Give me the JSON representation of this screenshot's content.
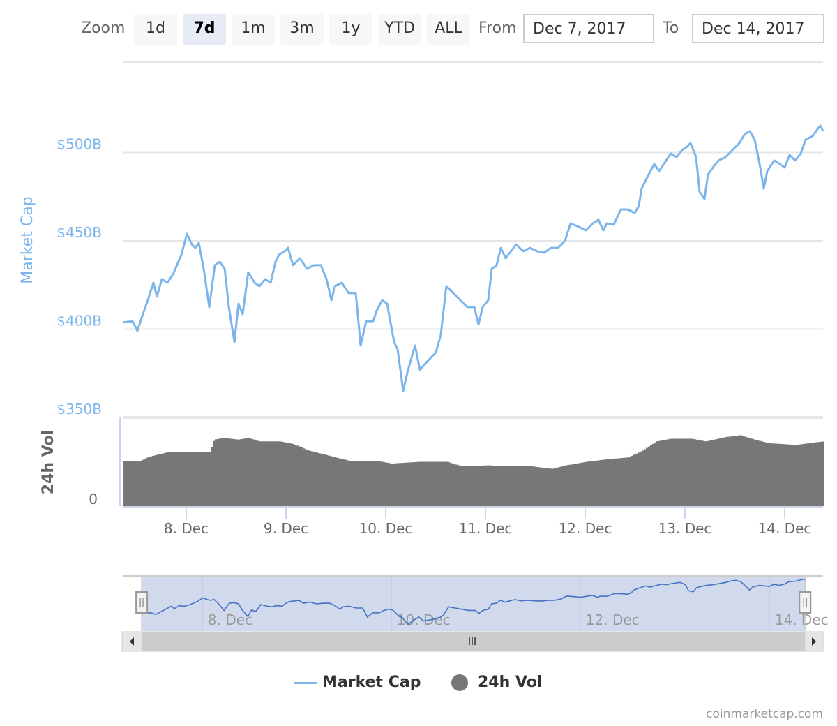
{
  "range_selector": {
    "zoom_label": "Zoom",
    "buttons": [
      "1d",
      "7d",
      "1m",
      "3m",
      "1y",
      "YTD",
      "ALL"
    ],
    "selected": "7d",
    "from_label": "From",
    "from_value": "Dec 7, 2017",
    "to_label": "To",
    "to_value": "Dec 14, 2017"
  },
  "legend": {
    "market_cap": "Market Cap",
    "vol": "24h Vol"
  },
  "credits": "coinmarketcap.com",
  "colors": {
    "market_cap": "#7cb5ec",
    "vol": "#777777",
    "navigator_line": "#4572c4",
    "navigator_fill": "#ccd6eb"
  },
  "chart_data": {
    "type": "line",
    "title": "",
    "x_unit": "days since Dec 7 2017 00:00",
    "xlim": [
      0.36,
      7.38
    ],
    "x_ticks": [
      {
        "t": 1,
        "label": "8. Dec"
      },
      {
        "t": 2,
        "label": "9. Dec"
      },
      {
        "t": 3,
        "label": "10. Dec"
      },
      {
        "t": 4,
        "label": "11. Dec"
      },
      {
        "t": 5,
        "label": "12. Dec"
      },
      {
        "t": 6,
        "label": "13. Dec"
      },
      {
        "t": 7,
        "label": "14. Dec"
      }
    ],
    "market_cap": {
      "ylabel": "Market Cap",
      "ylim": [
        350,
        520
      ],
      "y_ticks": [
        {
          "v": 350,
          "label": "$350B"
        },
        {
          "v": 400,
          "label": "$400B"
        },
        {
          "v": 450,
          "label": "$450B"
        },
        {
          "v": 500,
          "label": "$500B"
        }
      ],
      "points": [
        [
          0.364,
          403.8
        ],
        [
          0.462,
          404.5
        ],
        [
          0.51,
          399.0
        ],
        [
          0.566,
          408.5
        ],
        [
          0.615,
          416.4
        ],
        [
          0.671,
          426.3
        ],
        [
          0.706,
          418.4
        ],
        [
          0.755,
          428.3
        ],
        [
          0.811,
          426.3
        ],
        [
          0.867,
          431.0
        ],
        [
          0.951,
          442.1
        ],
        [
          1.007,
          454.0
        ],
        [
          1.056,
          448.0
        ],
        [
          1.091,
          446.0
        ],
        [
          1.126,
          448.8
        ],
        [
          1.175,
          434.2
        ],
        [
          1.231,
          412.5
        ],
        [
          1.287,
          436.2
        ],
        [
          1.336,
          438.1
        ],
        [
          1.385,
          434.2
        ],
        [
          1.427,
          412.5
        ],
        [
          1.483,
          392.7
        ],
        [
          1.524,
          414.4
        ],
        [
          1.566,
          408.5
        ],
        [
          1.622,
          432.2
        ],
        [
          1.685,
          426.3
        ],
        [
          1.734,
          424.3
        ],
        [
          1.79,
          428.3
        ],
        [
          1.846,
          426.3
        ],
        [
          1.895,
          438.1
        ],
        [
          1.93,
          442.1
        ],
        [
          1.986,
          444.1
        ],
        [
          2.021,
          446.0
        ],
        [
          2.07,
          436.2
        ],
        [
          2.14,
          440.1
        ],
        [
          2.21,
          434.2
        ],
        [
          2.28,
          436.2
        ],
        [
          2.35,
          436.2
        ],
        [
          2.406,
          428.3
        ],
        [
          2.455,
          416.4
        ],
        [
          2.49,
          424.3
        ],
        [
          2.559,
          426.3
        ],
        [
          2.629,
          420.4
        ],
        [
          2.699,
          420.4
        ],
        [
          2.748,
          390.7
        ],
        [
          2.804,
          404.5
        ],
        [
          2.874,
          404.5
        ],
        [
          2.909,
          410.5
        ],
        [
          2.965,
          416.4
        ],
        [
          3.014,
          414.4
        ],
        [
          3.084,
          392.7
        ],
        [
          3.119,
          388.7
        ],
        [
          3.175,
          365.0
        ],
        [
          3.224,
          376.9
        ],
        [
          3.294,
          390.7
        ],
        [
          3.343,
          376.9
        ],
        [
          3.434,
          382.8
        ],
        [
          3.503,
          386.8
        ],
        [
          3.552,
          396.6
        ],
        [
          3.608,
          424.3
        ],
        [
          3.678,
          420.4
        ],
        [
          3.748,
          416.4
        ],
        [
          3.818,
          412.5
        ],
        [
          3.888,
          412.5
        ],
        [
          3.93,
          402.6
        ],
        [
          3.972,
          412.5
        ],
        [
          4.028,
          416.4
        ],
        [
          4.063,
          434.2
        ],
        [
          4.112,
          436.2
        ],
        [
          4.154,
          446.0
        ],
        [
          4.203,
          440.1
        ],
        [
          4.308,
          448.0
        ],
        [
          4.378,
          444.1
        ],
        [
          4.448,
          446.0
        ],
        [
          4.517,
          444.1
        ],
        [
          4.587,
          443.3
        ],
        [
          4.657,
          446.0
        ],
        [
          4.727,
          446.0
        ],
        [
          4.797,
          450.0
        ],
        [
          4.853,
          459.9
        ],
        [
          4.937,
          457.9
        ],
        [
          5.007,
          455.9
        ],
        [
          5.077,
          459.9
        ],
        [
          5.133,
          461.9
        ],
        [
          5.182,
          455.9
        ],
        [
          5.217,
          459.9
        ],
        [
          5.287,
          459.1
        ],
        [
          5.357,
          467.8
        ],
        [
          5.427,
          467.8
        ],
        [
          5.497,
          465.8
        ],
        [
          5.538,
          469.8
        ],
        [
          5.566,
          479.6
        ],
        [
          5.601,
          483.6
        ],
        [
          5.636,
          487.5
        ],
        [
          5.692,
          493.5
        ],
        [
          5.741,
          489.5
        ],
        [
          5.811,
          495.5
        ],
        [
          5.86,
          499.4
        ],
        [
          5.916,
          497.4
        ],
        [
          5.972,
          501.4
        ],
        [
          6.021,
          503.4
        ],
        [
          6.056,
          505.3
        ],
        [
          6.112,
          497.4
        ],
        [
          6.147,
          477.7
        ],
        [
          6.196,
          473.7
        ],
        [
          6.231,
          487.5
        ],
        [
          6.28,
          491.5
        ],
        [
          6.336,
          495.5
        ],
        [
          6.406,
          497.4
        ],
        [
          6.476,
          501.4
        ],
        [
          6.545,
          505.3
        ],
        [
          6.601,
          510.5
        ],
        [
          6.65,
          512.1
        ],
        [
          6.699,
          507.3
        ],
        [
          6.755,
          491.5
        ],
        [
          6.79,
          479.6
        ],
        [
          6.825,
          489.5
        ],
        [
          6.895,
          495.5
        ],
        [
          6.951,
          493.5
        ],
        [
          7.0,
          491.5
        ],
        [
          7.049,
          498.6
        ],
        [
          7.105,
          495.5
        ],
        [
          7.161,
          499.4
        ],
        [
          7.21,
          507.3
        ],
        [
          7.28,
          509.3
        ],
        [
          7.329,
          513.2
        ],
        [
          7.357,
          515.2
        ],
        [
          7.385,
          512.1
        ]
      ]
    },
    "volume": {
      "ylabel": "24h Vol",
      "y_unit": "fraction of panel max",
      "y_ticks": [
        {
          "v": 0,
          "label": "0"
        }
      ],
      "points": [
        [
          0.36,
          0.51
        ],
        [
          0.53,
          0.51
        ],
        [
          0.6,
          0.55
        ],
        [
          0.74,
          0.59
        ],
        [
          0.81,
          0.61
        ],
        [
          0.95,
          0.61
        ],
        [
          1.23,
          0.61
        ],
        [
          1.27,
          0.75
        ],
        [
          1.37,
          0.77
        ],
        [
          1.51,
          0.75
        ],
        [
          1.62,
          0.77
        ],
        [
          1.72,
          0.73
        ],
        [
          1.93,
          0.73
        ],
        [
          2.07,
          0.7
        ],
        [
          2.21,
          0.63
        ],
        [
          2.35,
          0.59
        ],
        [
          2.49,
          0.55
        ],
        [
          2.63,
          0.51
        ],
        [
          2.77,
          0.51
        ],
        [
          2.91,
          0.51
        ],
        [
          3.05,
          0.48
        ],
        [
          3.33,
          0.5
        ],
        [
          3.61,
          0.5
        ],
        [
          3.75,
          0.45
        ],
        [
          4.03,
          0.46
        ],
        [
          4.17,
          0.45
        ],
        [
          4.45,
          0.45
        ],
        [
          4.66,
          0.42
        ],
        [
          4.8,
          0.46
        ],
        [
          5.01,
          0.5
        ],
        [
          5.22,
          0.53
        ],
        [
          5.43,
          0.55
        ],
        [
          5.57,
          0.63
        ],
        [
          5.71,
          0.73
        ],
        [
          5.85,
          0.76
        ],
        [
          6.06,
          0.76
        ],
        [
          6.2,
          0.73
        ],
        [
          6.41,
          0.78
        ],
        [
          6.55,
          0.8
        ],
        [
          6.69,
          0.75
        ],
        [
          6.83,
          0.71
        ],
        [
          7.1,
          0.69
        ],
        [
          7.24,
          0.71
        ],
        [
          7.38,
          0.73
        ]
      ]
    },
    "navigator": {
      "xlim": [
        0.16,
        7.57
      ],
      "selection": [
        0.36,
        7.38
      ],
      "x_ticks": [
        {
          "t": 1,
          "label": "8. Dec"
        },
        {
          "t": 3,
          "label": "10. Dec"
        },
        {
          "t": 5,
          "label": "12. Dec"
        },
        {
          "t": 7,
          "label": "14. Dec"
        }
      ]
    },
    "legend_position": "bottom-center"
  }
}
